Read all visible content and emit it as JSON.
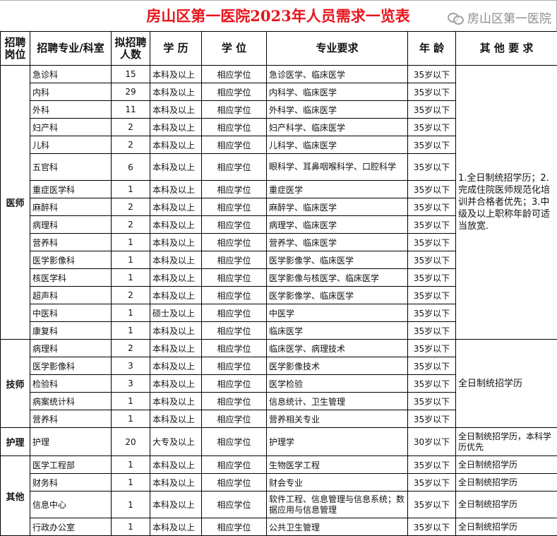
{
  "title": "房山区第一医院2023年人员需求一览表",
  "headers": [
    "招聘岗位",
    "招聘专业/科室",
    "拟招聘人数",
    "学 历",
    "学 位",
    "专业要求",
    "年 龄",
    "其 他 要 求"
  ],
  "groups": [
    {
      "name": "医师",
      "note": "1.全日制统招学历；2.完成住院医师规范化培训并合格者优先；3.中级及以上职称年龄可适当放宽.",
      "rows": [
        {
          "dept": "急诊科",
          "count": "15",
          "edu": "本科及以上",
          "degree": "相应学位",
          "major": "急诊医学、临床医学",
          "age": "35岁以下"
        },
        {
          "dept": "内科",
          "count": "29",
          "edu": "本科及以上",
          "degree": "相应学位",
          "major": "内科学、临床医学",
          "age": "35岁以下"
        },
        {
          "dept": "外科",
          "count": "11",
          "edu": "本科及以上",
          "degree": "相应学位",
          "major": "外科学、临床医学",
          "age": "35岁以下"
        },
        {
          "dept": "妇产科",
          "count": "2",
          "edu": "本科及以上",
          "degree": "相应学位",
          "major": "妇产科学、临床医学",
          "age": "35岁以下"
        },
        {
          "dept": "儿科",
          "count": "2",
          "edu": "本科及以上",
          "degree": "相应学位",
          "major": "儿科学、临床医学",
          "age": "35岁以下"
        },
        {
          "dept": "五官科",
          "count": "6",
          "edu": "本科及以上",
          "degree": "相应学位",
          "major": "眼科学、耳鼻咽喉科学、口腔科学",
          "age": "35岁以下"
        },
        {
          "dept": "重症医学科",
          "count": "1",
          "edu": "本科及以上",
          "degree": "相应学位",
          "major": "重症医学",
          "age": "35岁以下"
        },
        {
          "dept": "麻醉科",
          "count": "2",
          "edu": "本科及以上",
          "degree": "相应学位",
          "major": "麻醉学、临床医学",
          "age": "35岁以下"
        },
        {
          "dept": "病理科",
          "count": "2",
          "edu": "本科及以上",
          "degree": "相应学位",
          "major": "病理学、临床医学",
          "age": "35岁以下"
        },
        {
          "dept": "营养科",
          "count": "1",
          "edu": "本科及以上",
          "degree": "相应学位",
          "major": "营养学、临床医学",
          "age": "35岁以下"
        },
        {
          "dept": "医学影像科",
          "count": "1",
          "edu": "本科及以上",
          "degree": "相应学位",
          "major": "医学影像学、临床医学",
          "age": "35岁以下"
        },
        {
          "dept": "核医学科",
          "count": "1",
          "edu": "本科及以上",
          "degree": "相应学位",
          "major": "医学影像与核医学、临床医学",
          "age": "35岁以下"
        },
        {
          "dept": "超声科",
          "count": "2",
          "edu": "本科及以上",
          "degree": "相应学位",
          "major": "医学影像学、临床医学",
          "age": "35岁以下"
        },
        {
          "dept": "中医科",
          "count": "1",
          "edu": "硕士及以上",
          "degree": "相应学位",
          "major": "中医学",
          "age": "35岁以下"
        },
        {
          "dept": "康复科",
          "count": "1",
          "edu": "本科及以上",
          "degree": "相应学位",
          "major": "临床医学",
          "age": "35岁以下"
        }
      ]
    },
    {
      "name": "技师",
      "note": "全日制统招学历",
      "rows": [
        {
          "dept": "病理科",
          "count": "2",
          "edu": "本科及以上",
          "degree": "相应学位",
          "major": "临床医学、病理技术",
          "age": "35岁以下"
        },
        {
          "dept": "医学影像科",
          "count": "3",
          "edu": "本科及以上",
          "degree": "相应学位",
          "major": "医学影像技术",
          "age": "35岁以下"
        },
        {
          "dept": "检验科",
          "count": "3",
          "edu": "本科及以上",
          "degree": "相应学位",
          "major": "医学检验",
          "age": "35岁以下"
        },
        {
          "dept": "病案统计科",
          "count": "1",
          "edu": "本科及以上",
          "degree": "相应学位",
          "major": "信息统计、卫生管理",
          "age": "35岁以下"
        },
        {
          "dept": "营养科",
          "count": "1",
          "edu": "本科及以上",
          "degree": "相应学位",
          "major": "营养相关专业",
          "age": "35岁以下"
        }
      ]
    },
    {
      "name": "护理",
      "rows": [
        {
          "dept": "护理",
          "count": "20",
          "edu": "大专及以上",
          "degree": "相应学位",
          "major": "护理学",
          "age": "30岁以下",
          "note": "全日制统招学历，本科学历优先"
        }
      ]
    },
    {
      "name": "其他",
      "rows": [
        {
          "dept": "医学工程部",
          "count": "1",
          "edu": "本科及以上",
          "degree": "相应学位",
          "major": "生物医学工程",
          "age": "35岁以下",
          "note": "全日制统招学历"
        },
        {
          "dept": "财务科",
          "count": "1",
          "edu": "本科及以上",
          "degree": "相应学位",
          "major": "财会专业",
          "age": "35岁以下",
          "note": "全日制统招学历"
        },
        {
          "dept": "信息中心",
          "count": "1",
          "edu": "本科及以上",
          "degree": "相应学位",
          "major": "软件工程、信息管理与信息系统；数据应用与信息管理",
          "age": "35岁以下",
          "note": "全日制统招学历"
        },
        {
          "dept": "行政办公室",
          "count": "1",
          "edu": "本科及以上",
          "degree": "相应学位",
          "major": "公共卫生管理",
          "age": "35岁以下",
          "note": "全日制统招学历"
        }
      ]
    }
  ],
  "watermark": "房山区第一医院",
  "colors": {
    "title": "#e8141c"
  }
}
